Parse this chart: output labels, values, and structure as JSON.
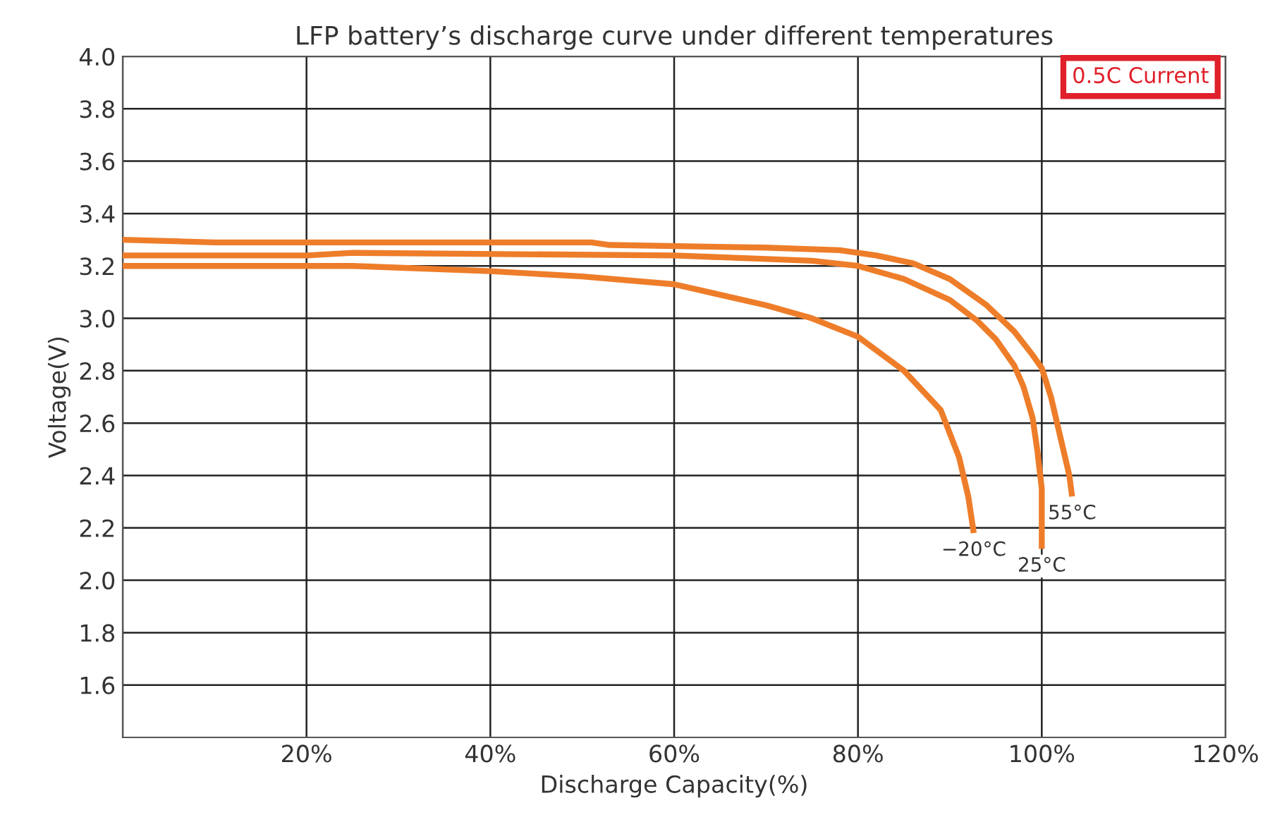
{
  "chart_data": {
    "type": "line",
    "title": "LFP battery’s discharge curve under different temperatures",
    "xlabel": "Discharge Capacity(%)",
    "ylabel": "Voltage(V)",
    "annotations": [
      "0.5C Current"
    ],
    "series": [
      {
        "name": "55°C",
        "color": "#ee7d2a",
        "x": [
          0,
          10,
          20,
          40,
          51,
          53,
          70,
          78,
          82,
          86,
          90,
          94,
          97,
          99,
          100,
          101,
          102,
          103,
          103.3
        ],
        "values": [
          3.3,
          3.29,
          3.29,
          3.29,
          3.29,
          3.28,
          3.27,
          3.26,
          3.24,
          3.21,
          3.15,
          3.05,
          2.95,
          2.86,
          2.81,
          2.7,
          2.55,
          2.4,
          2.32
        ]
      },
      {
        "name": "25°C",
        "color": "#ee7d2a",
        "x": [
          0,
          20,
          25,
          60,
          75,
          80,
          85,
          90,
          93,
          95,
          97,
          98,
          99,
          99.5,
          100,
          100
        ],
        "values": [
          3.24,
          3.24,
          3.25,
          3.24,
          3.22,
          3.2,
          3.15,
          3.07,
          2.99,
          2.92,
          2.82,
          2.74,
          2.62,
          2.5,
          2.35,
          2.12
        ]
      },
      {
        "name": "−20°C",
        "color": "#ee7d2a",
        "x": [
          0,
          25,
          40,
          50,
          60,
          65,
          70,
          75,
          80,
          85,
          89,
          91,
          92,
          92.6
        ],
        "values": [
          3.2,
          3.2,
          3.18,
          3.16,
          3.13,
          3.09,
          3.05,
          3.0,
          2.93,
          2.8,
          2.65,
          2.47,
          2.32,
          2.18
        ]
      }
    ],
    "xlim": [
      0,
      120
    ],
    "xticks": [
      {
        "value": 0,
        "label": null
      },
      {
        "value": 20,
        "label": "20%"
      },
      {
        "value": 40,
        "label": "40%"
      },
      {
        "value": 60,
        "label": "60%"
      },
      {
        "value": 80,
        "label": "80%"
      },
      {
        "value": 100,
        "label": "100%"
      },
      {
        "value": 120,
        "label": "120%"
      }
    ],
    "ylim": [
      1.4,
      4.0
    ],
    "yticks": [
      1.6,
      1.8,
      {
        "value": 2,
        "label": "2.0"
      },
      2.2,
      2.4,
      2.6,
      2.8,
      {
        "value": 3,
        "label": "3.0"
      },
      3.2,
      3.4,
      3.6,
      3.8,
      {
        "value": 4,
        "label": "4.0"
      }
    ],
    "grid": true,
    "marker": "none",
    "line_style": "solid"
  }
}
